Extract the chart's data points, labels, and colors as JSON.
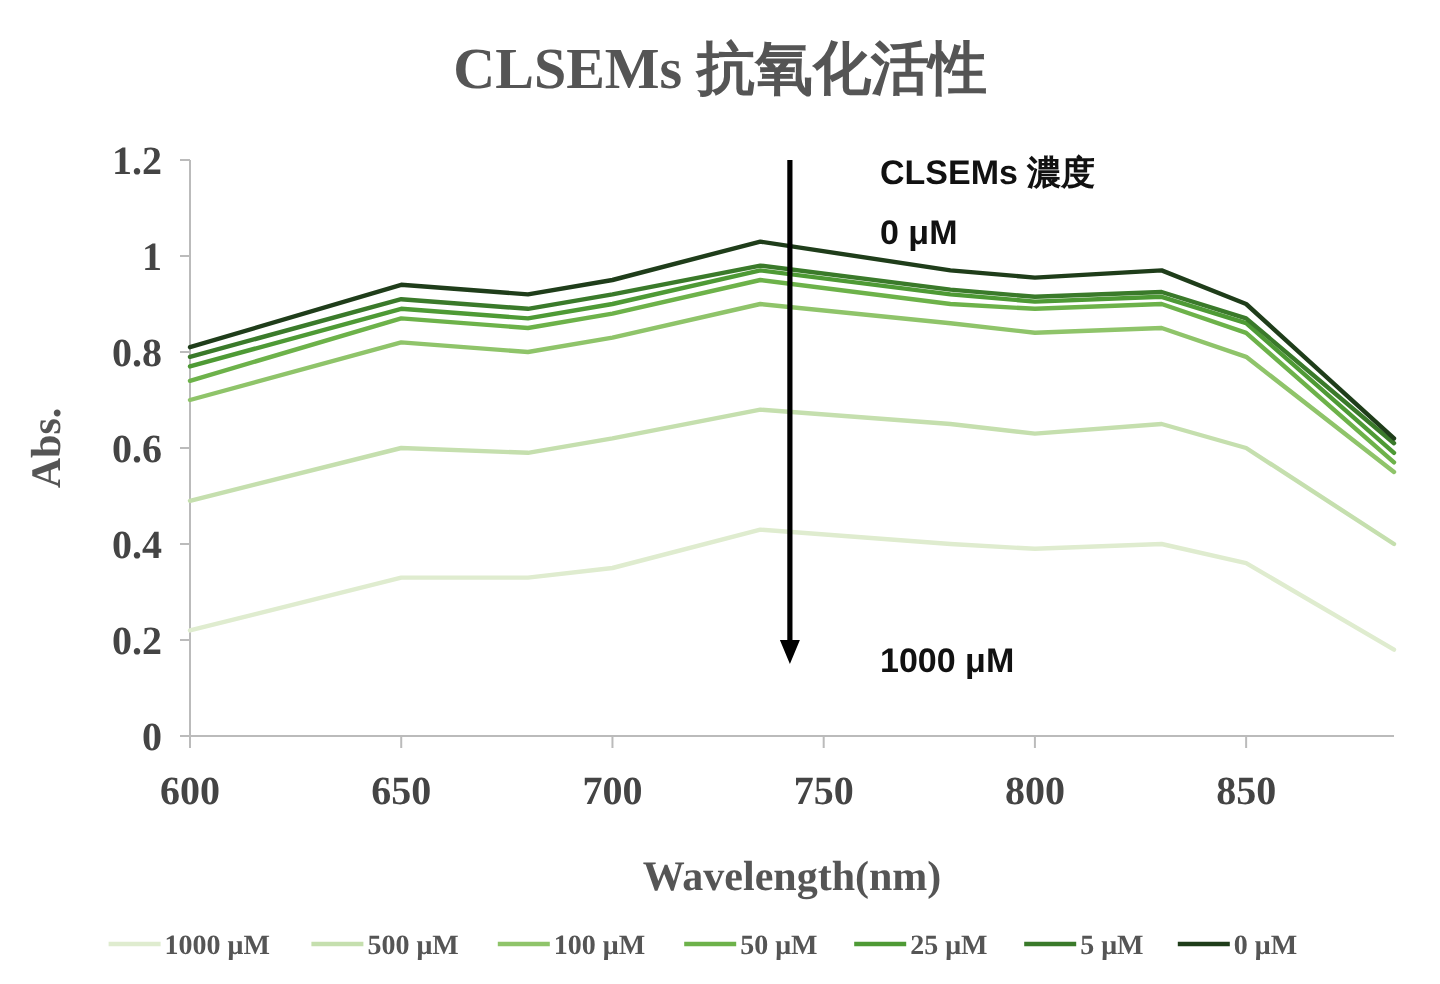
{
  "chart_data": {
    "type": "line",
    "title": "CLSEMs 抗氧化活性",
    "xlabel": "Wavelength(nm)",
    "ylabel": "Abs.",
    "x": [
      600,
      650,
      680,
      700,
      735,
      780,
      800,
      830,
      850,
      885
    ],
    "xlim": [
      600,
      885
    ],
    "ylim": [
      0,
      1.2
    ],
    "xticks": [
      600,
      650,
      700,
      750,
      800,
      850
    ],
    "yticks": [
      0,
      0.2,
      0.4,
      0.6,
      0.8,
      1,
      1.2
    ],
    "legend": "bottom",
    "series": [
      {
        "name": "1000 μM",
        "color": "#dfeccf",
        "values": [
          0.22,
          0.33,
          0.33,
          0.35,
          0.43,
          0.4,
          0.39,
          0.4,
          0.36,
          0.18
        ]
      },
      {
        "name": "500 μM",
        "color": "#c5dfae",
        "values": [
          0.49,
          0.6,
          0.59,
          0.62,
          0.68,
          0.65,
          0.63,
          0.65,
          0.6,
          0.4
        ]
      },
      {
        "name": "100 μM",
        "color": "#8fc46a",
        "values": [
          0.7,
          0.82,
          0.8,
          0.83,
          0.9,
          0.86,
          0.84,
          0.85,
          0.79,
          0.55
        ]
      },
      {
        "name": "50 μM",
        "color": "#6db24a",
        "values": [
          0.74,
          0.87,
          0.85,
          0.88,
          0.95,
          0.9,
          0.89,
          0.9,
          0.84,
          0.57
        ]
      },
      {
        "name": "25 μM",
        "color": "#4e9a35",
        "values": [
          0.77,
          0.89,
          0.87,
          0.9,
          0.97,
          0.92,
          0.905,
          0.915,
          0.86,
          0.59
        ]
      },
      {
        "name": "5 μM",
        "color": "#3a7a2a",
        "values": [
          0.79,
          0.91,
          0.89,
          0.92,
          0.98,
          0.93,
          0.915,
          0.925,
          0.87,
          0.61
        ]
      },
      {
        "name": "0 μM",
        "color": "#1f3d1a",
        "values": [
          0.81,
          0.94,
          0.92,
          0.95,
          1.03,
          0.97,
          0.955,
          0.97,
          0.9,
          0.62
        ]
      }
    ],
    "annotations": [
      "CLSEMs 濃度",
      "0 μM",
      "1000 μM"
    ]
  }
}
